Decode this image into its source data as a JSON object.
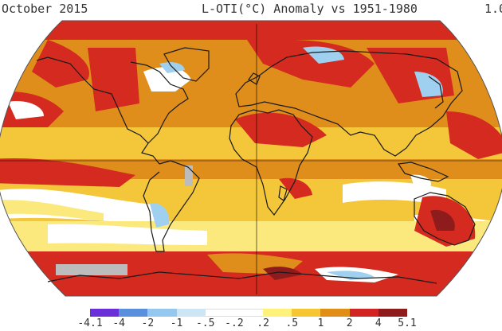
{
  "header": {
    "title": "October 2015",
    "subtitle": "L-OTI(°C) Anomaly vs 1951-1980",
    "global_mean": "1.0"
  },
  "legend": {
    "ticks": [
      "-4.1",
      "-4",
      "-2",
      "-1",
      "-.5",
      "-.2",
      ".2",
      ".5",
      "1",
      "2",
      "4",
      "5.1"
    ],
    "colors": [
      "#6a2fd8",
      "#5a8fde",
      "#94c8ee",
      "#cde6f6",
      "#ffffff",
      "#ffffff",
      "#fff27a",
      "#f6c634",
      "#e08e16",
      "#d22323",
      "#8e1c1c"
    ]
  },
  "colors": {
    "strong_warm": "#d42a1f",
    "warm": "#df8d1b",
    "mild_warm": "#f3c739",
    "light_warm": "#fbe97d",
    "neutral": "#ffffff",
    "cool": "#9fd0ef",
    "no_data": "#bcbcbc",
    "coastline": "#1a1a1a"
  }
}
